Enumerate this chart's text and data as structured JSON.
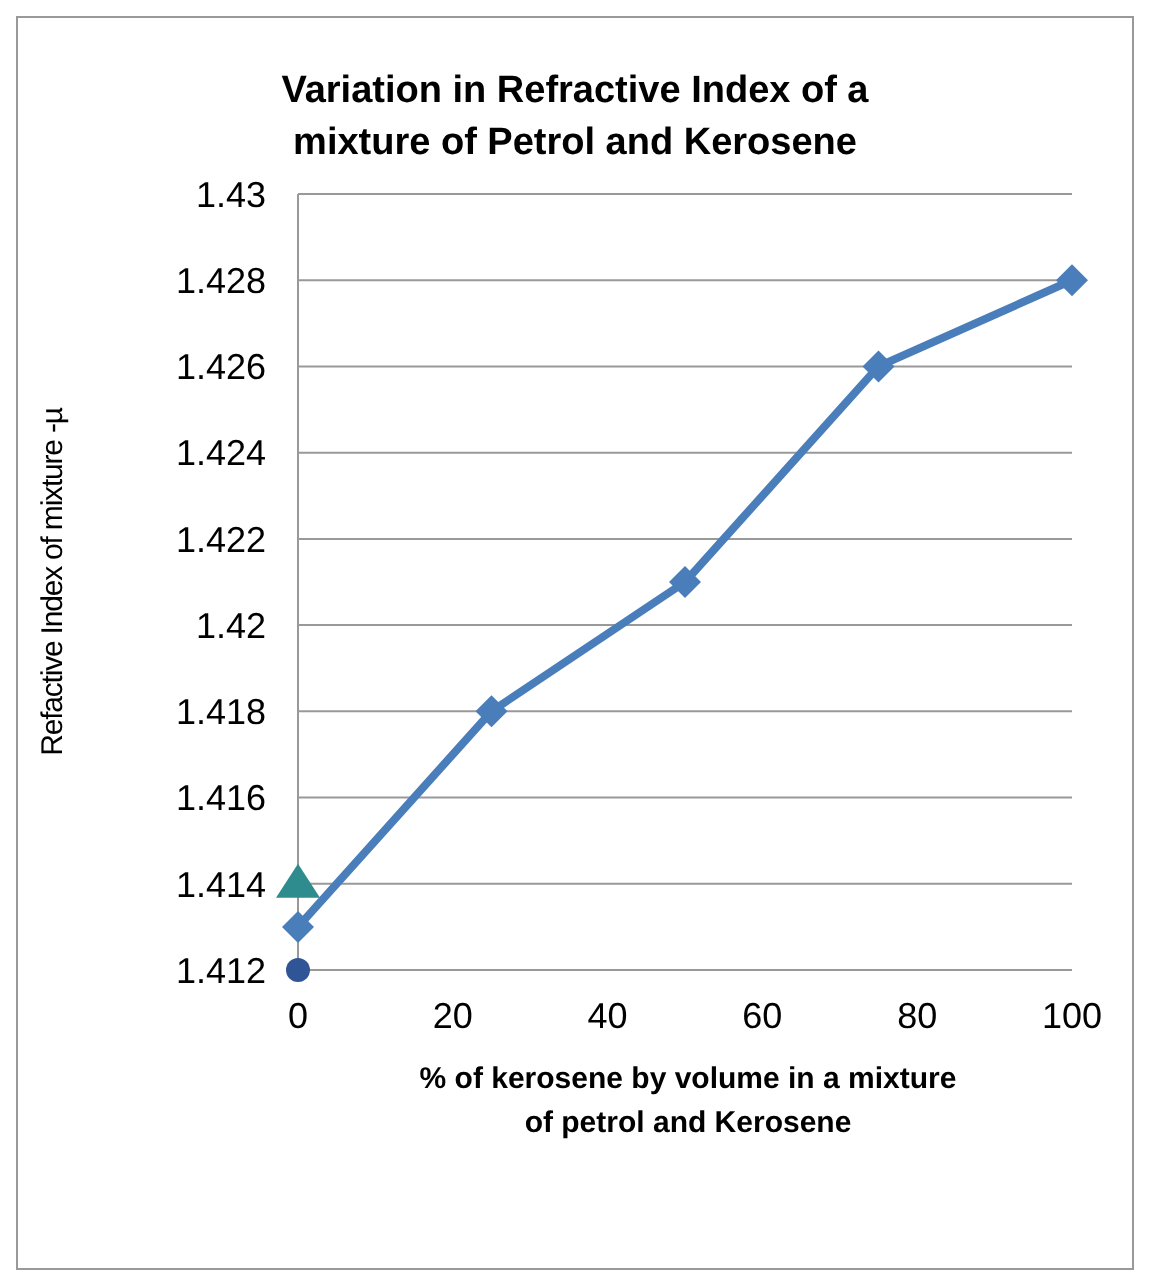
{
  "chart_data": {
    "type": "line",
    "title": "Variation in Refractive Index of a mixture of Petrol and Kerosene",
    "xlabel": "% of kerosene by volume in a mixture of petrol and Kerosene",
    "ylabel": "Refactive Index of mixture -µ",
    "xlim": [
      0,
      100
    ],
    "xticks": [
      0,
      20,
      40,
      60,
      80,
      100
    ],
    "ylim": [
      1.412,
      1.43
    ],
    "yticks": [
      1.412,
      1.414,
      1.416,
      1.418,
      1.42,
      1.422,
      1.424,
      1.426,
      1.428,
      1.43
    ],
    "grid": "y",
    "legend": false,
    "series": [
      {
        "type": "line",
        "color": "#4a7ebb",
        "marker": "diamond",
        "x": [
          0,
          25,
          50,
          75,
          100
        ],
        "values": [
          1.413,
          1.418,
          1.421,
          1.426,
          1.428
        ]
      },
      {
        "type": "scatter",
        "color": "#2e8b8e",
        "marker": "triangle",
        "x": [
          0
        ],
        "values": [
          1.414
        ]
      },
      {
        "type": "scatter",
        "color": "#2f5597",
        "marker": "circle",
        "x": [
          0
        ],
        "values": [
          1.412
        ]
      }
    ]
  }
}
